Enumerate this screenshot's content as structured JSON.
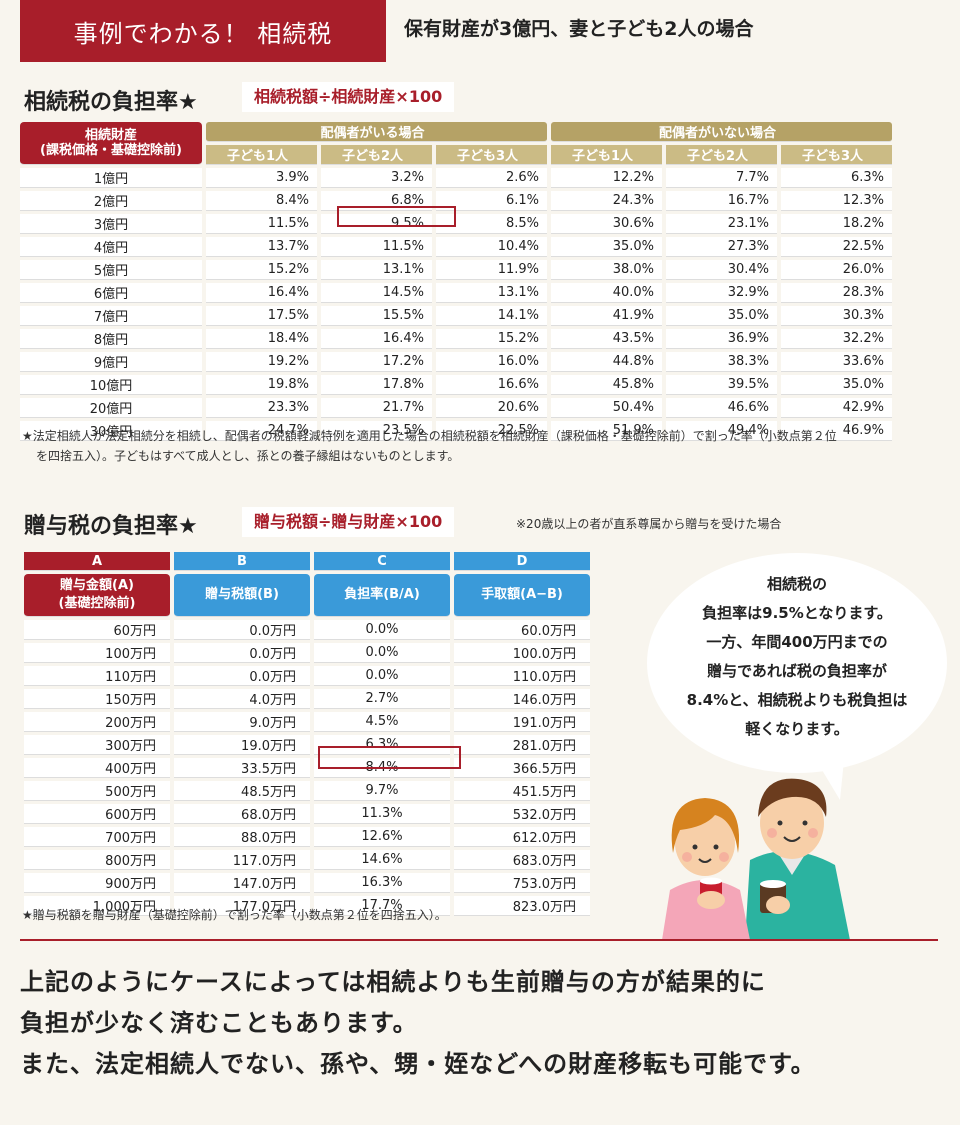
{
  "header": {
    "title": "事例でわかる！ 相続税",
    "subtitle": "保有財産が3億円、妻と子ども2人の場合"
  },
  "inheritance": {
    "heading": "相続税の負担率★",
    "formula": "相続税額÷相続財産×100",
    "row_header": "相続財産\n(課税価格・基礎控除前)",
    "group_with_spouse": "配偶者がいる場合",
    "group_without_spouse": "配偶者がいない場合",
    "child_cols": [
      "子ども1人",
      "子ども2人",
      "子ども3人",
      "子ども1人",
      "子ども2人",
      "子ども3人"
    ],
    "rows": [
      [
        "1億円",
        "3.9%",
        "3.2%",
        "2.6%",
        "12.2%",
        "7.7%",
        "6.3%"
      ],
      [
        "2億円",
        "8.4%",
        "6.8%",
        "6.1%",
        "24.3%",
        "16.7%",
        "12.3%"
      ],
      [
        "3億円",
        "11.5%",
        "9.5%",
        "8.5%",
        "30.6%",
        "23.1%",
        "18.2%"
      ],
      [
        "4億円",
        "13.7%",
        "11.5%",
        "10.4%",
        "35.0%",
        "27.3%",
        "22.5%"
      ],
      [
        "5億円",
        "15.2%",
        "13.1%",
        "11.9%",
        "38.0%",
        "30.4%",
        "26.0%"
      ],
      [
        "6億円",
        "16.4%",
        "14.5%",
        "13.1%",
        "40.0%",
        "32.9%",
        "28.3%"
      ],
      [
        "7億円",
        "17.5%",
        "15.5%",
        "14.1%",
        "41.9%",
        "35.0%",
        "30.3%"
      ],
      [
        "8億円",
        "18.4%",
        "16.4%",
        "15.2%",
        "43.5%",
        "36.9%",
        "32.2%"
      ],
      [
        "9億円",
        "19.2%",
        "17.2%",
        "16.0%",
        "44.8%",
        "38.3%",
        "33.6%"
      ],
      [
        "10億円",
        "19.8%",
        "17.8%",
        "16.6%",
        "45.8%",
        "39.5%",
        "35.0%"
      ],
      [
        "20億円",
        "23.3%",
        "21.7%",
        "20.6%",
        "50.4%",
        "46.6%",
        "42.9%"
      ],
      [
        "30億円",
        "24.7%",
        "23.5%",
        "22.5%",
        "51.9%",
        "49.4%",
        "46.9%"
      ]
    ],
    "note_line1": "★法定相続人が法定相続分を相続し、配偶者の税額軽減特例を適用した場合の相続税額を相続財産（課税価格・基礎控除前）で割った率（小数点第２位",
    "note_line2": "を四捨五入）。子どもはすべて成人とし、孫との養子縁組はないものとします。"
  },
  "gift": {
    "heading": "贈与税の負担率★",
    "formula": "贈与税額÷贈与財産×100",
    "condition": "※20歳以上の者が直系尊属から贈与を受けた場合",
    "col_letters": [
      "A",
      "B",
      "C",
      "D"
    ],
    "col_headers": [
      "贈与金額(A)\n(基礎控除前)",
      "贈与税額(B)",
      "負担率(B/A)",
      "手取額(A−B)"
    ],
    "rows": [
      [
        "60万円",
        "0.0万円",
        "0.0%",
        "60.0万円"
      ],
      [
        "100万円",
        "0.0万円",
        "0.0%",
        "100.0万円"
      ],
      [
        "110万円",
        "0.0万円",
        "0.0%",
        "110.0万円"
      ],
      [
        "150万円",
        "4.0万円",
        "2.7%",
        "146.0万円"
      ],
      [
        "200万円",
        "9.0万円",
        "4.5%",
        "191.0万円"
      ],
      [
        "300万円",
        "19.0万円",
        "6.3%",
        "281.0万円"
      ],
      [
        "400万円",
        "33.5万円",
        "8.4%",
        "366.5万円"
      ],
      [
        "500万円",
        "48.5万円",
        "9.7%",
        "451.5万円"
      ],
      [
        "600万円",
        "68.0万円",
        "11.3%",
        "532.0万円"
      ],
      [
        "700万円",
        "88.0万円",
        "12.6%",
        "612.0万円"
      ],
      [
        "800万円",
        "117.0万円",
        "14.6%",
        "683.0万円"
      ],
      [
        "900万円",
        "147.0万円",
        "16.3%",
        "753.0万円"
      ],
      [
        "1,000万円",
        "177.0万円",
        "17.7%",
        "823.0万円"
      ]
    ],
    "note": "★贈与税額を贈与財産（基礎控除前）で割った率（小数点第２位を四捨五入）。"
  },
  "bubble": {
    "lines": [
      "相続税の",
      "負担率は9.5%となります。",
      "一方、年間400万円までの",
      "贈与であれば税の負担率が",
      "8.4%と、相続税よりも税負担は",
      "軽くなります。"
    ]
  },
  "closing": {
    "lines": [
      "上記のようにケースによっては相続よりも生前贈与の方が結果的に",
      "負担が少なく済むこともあります。",
      "また、法定相続人でない、孫や、甥・姪などへの財産移転も可能です。"
    ]
  },
  "colors": {
    "accent_red": "#a81e2a",
    "gold": "#b5a266",
    "blue": "#3a9ad9"
  },
  "illustration": {
    "icon": "couple-with-mugs-illustration"
  }
}
